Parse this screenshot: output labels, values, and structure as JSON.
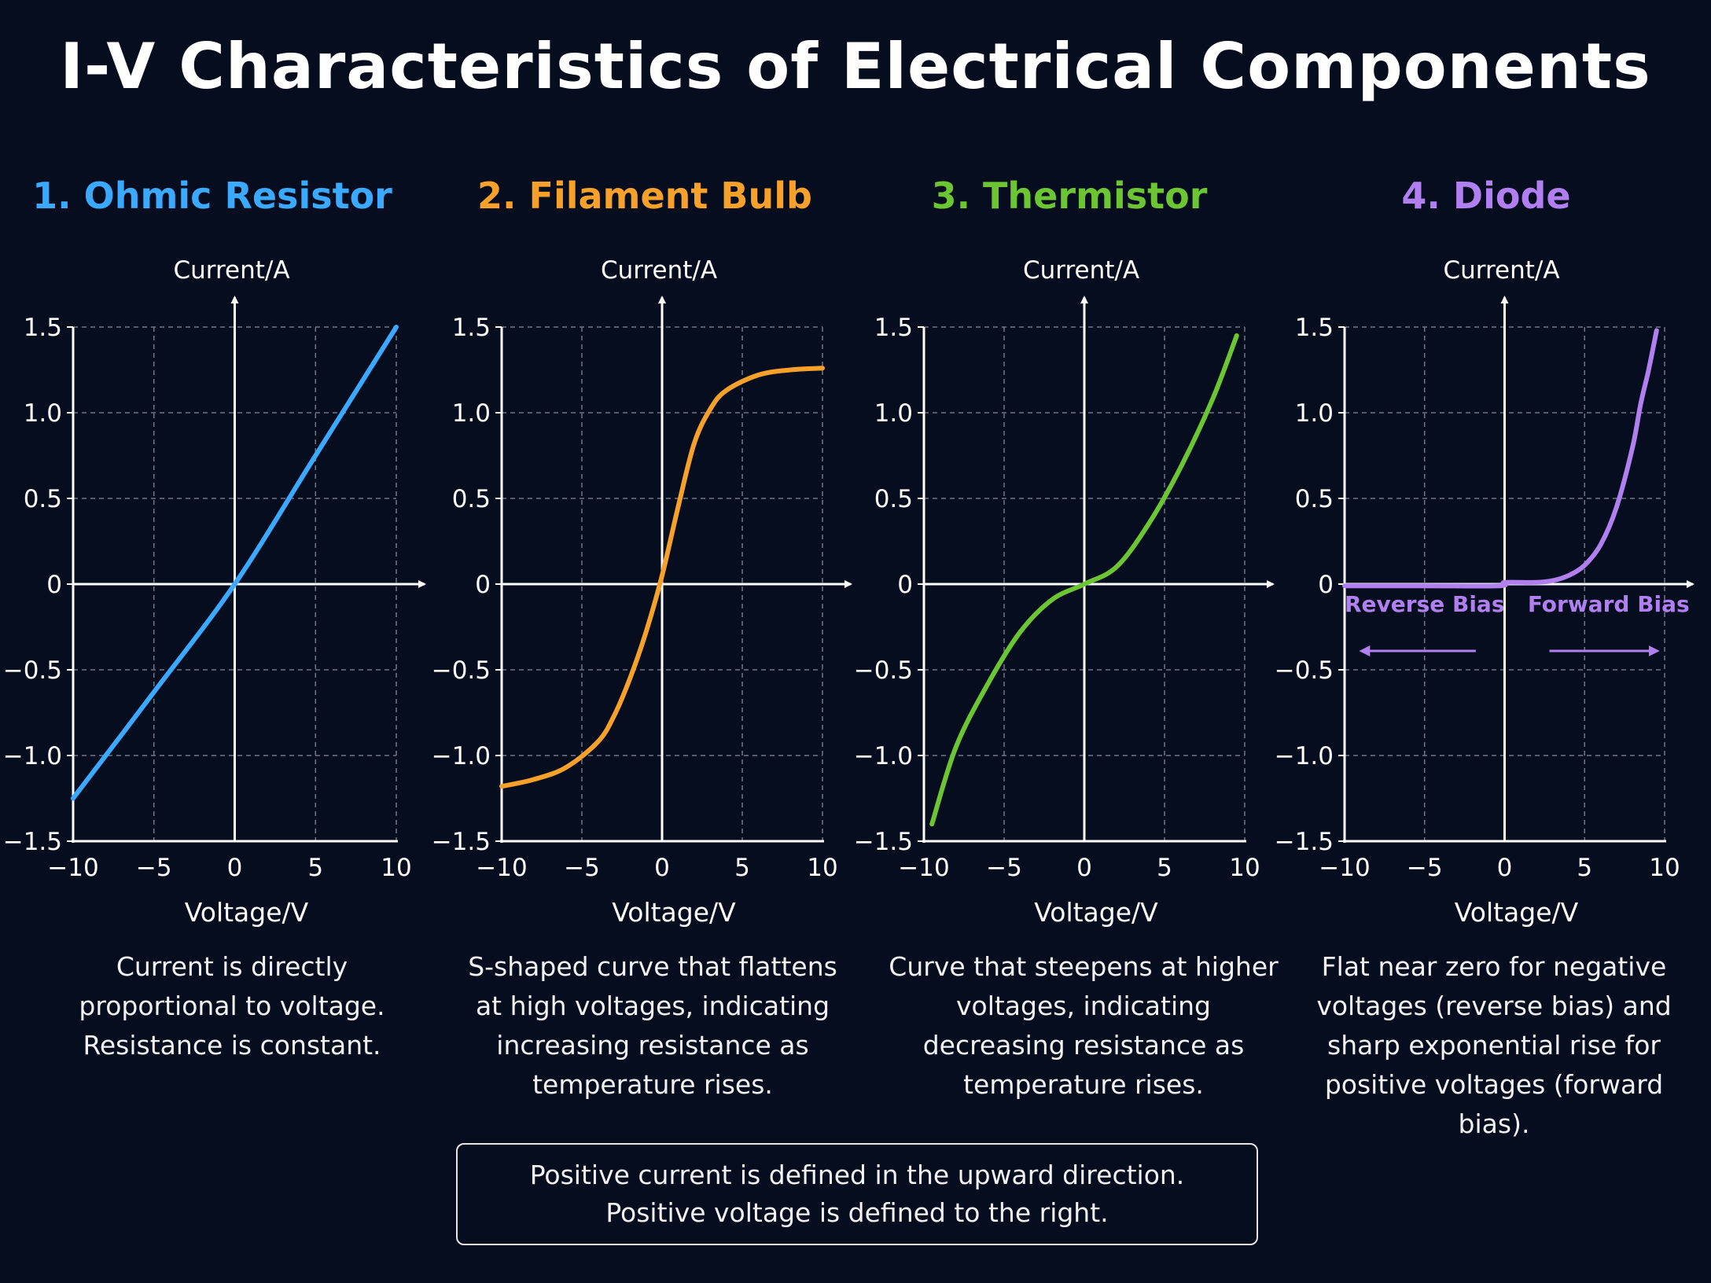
{
  "title": "I-V Characteristics of Electrical Components",
  "note": {
    "line1": "Positive current is defined in the upward direction.",
    "line2": "Positive voltage is defined to the right."
  },
  "chart_data": [
    {
      "type": "line",
      "title": "1. Ohmic Resistor",
      "color": "#3aa9ff",
      "xlabel": "Voltage/V",
      "ylabel": "Current/A",
      "xlim": [
        -10,
        10
      ],
      "ylim": [
        -1.5,
        1.5
      ],
      "xticks": [
        -10,
        -5,
        0,
        5,
        10
      ],
      "yticks": [
        -1.5,
        -1.0,
        -0.5,
        0,
        0.5,
        1.0,
        1.5
      ],
      "xtick_labels": [
        "−10",
        "−5",
        "0",
        "5",
        "10"
      ],
      "ytick_labels": [
        "−1.5",
        "−1.0",
        "−0.5",
        "0",
        "0.5",
        "1.0",
        "1.5"
      ],
      "grid": true,
      "description": "Current is directly proportional to voltage. Resistance is constant.",
      "x": [
        -10,
        -5,
        0,
        5,
        10
      ],
      "y": [
        -1.25,
        -0.63,
        0,
        0.75,
        1.5
      ]
    },
    {
      "type": "line",
      "title": "2. Filament Bulb",
      "color": "#f7a12b",
      "xlabel": "Voltage/V",
      "ylabel": "Current/A",
      "xlim": [
        -10,
        10
      ],
      "ylim": [
        -1.5,
        1.5
      ],
      "xticks": [
        -10,
        -5,
        0,
        5,
        10
      ],
      "yticks": [
        -1.5,
        -1.0,
        -0.5,
        0,
        0.5,
        1.0,
        1.5
      ],
      "xtick_labels": [
        "−10",
        "−5",
        "0",
        "5",
        "10"
      ],
      "ytick_labels": [
        "−1.5",
        "−1.0",
        "−0.5",
        "0",
        "0.5",
        "1.0",
        "1.5"
      ],
      "grid": true,
      "description": "S-shaped curve that flattens at high voltages, indicating increasing resistance as temperature rises.",
      "x": [
        -10,
        -8,
        -6,
        -4,
        -3,
        -2,
        -1,
        0,
        1,
        2,
        3,
        4,
        6,
        8,
        10
      ],
      "y": [
        -1.18,
        -1.14,
        -1.07,
        -0.92,
        -0.77,
        -0.55,
        -0.28,
        0.05,
        0.45,
        0.82,
        1.02,
        1.13,
        1.22,
        1.25,
        1.26
      ]
    },
    {
      "type": "line",
      "title": "3. Thermistor",
      "color": "#6cc532",
      "xlabel": "Voltage/V",
      "ylabel": "Current/A",
      "xlim": [
        -10,
        10
      ],
      "ylim": [
        -1.5,
        1.5
      ],
      "xticks": [
        -10,
        -5,
        0,
        5,
        10
      ],
      "yticks": [
        -1.5,
        -1.0,
        -0.5,
        0,
        0.5,
        1.0,
        1.5
      ],
      "xtick_labels": [
        "−10",
        "−5",
        "0",
        "5",
        "10"
      ],
      "ytick_labels": [
        "−1.5",
        "−1.0",
        "−0.5",
        "0",
        "0.5",
        "1.0",
        "1.5"
      ],
      "grid": true,
      "description": "Curve that steepens at higher voltages, indicating decreasing resistance as temperature rises.",
      "x": [
        -9.5,
        -8,
        -6,
        -4,
        -2,
        0,
        2,
        4,
        6,
        8,
        9.5
      ],
      "y": [
        -1.4,
        -0.95,
        -0.58,
        -0.28,
        -0.09,
        0,
        0.1,
        0.35,
        0.68,
        1.08,
        1.45
      ]
    },
    {
      "type": "line",
      "title": "4. Diode",
      "color": "#b27ff0",
      "xlabel": "Voltage/V",
      "ylabel": "Current/A",
      "xlim": [
        -10,
        10
      ],
      "ylim": [
        -1.5,
        1.5
      ],
      "xticks": [
        -10,
        -5,
        0,
        5,
        10
      ],
      "yticks": [
        -1.5,
        -1.0,
        -0.5,
        0,
        0.5,
        1.0,
        1.5
      ],
      "xtick_labels": [
        "−10",
        "−5",
        "0",
        "5",
        "10"
      ],
      "ytick_labels": [
        "−1.5",
        "−1.0",
        "−0.5",
        "0",
        "0.5",
        "1.0",
        "1.5"
      ],
      "grid": true,
      "description": "Flat near zero for negative voltages (reverse bias) and sharp exponential rise for positive voltages (forward bias).",
      "annotations": [
        "Reverse Bias",
        "Forward Bias"
      ],
      "x": [
        -10,
        -5,
        -0.3,
        0,
        2,
        3,
        4,
        5,
        6,
        7,
        8,
        8.5,
        9,
        9.5
      ],
      "y": [
        -0.01,
        -0.01,
        -0.01,
        0.01,
        0.01,
        0.02,
        0.05,
        0.11,
        0.23,
        0.45,
        0.8,
        1.05,
        1.25,
        1.48
      ]
    }
  ]
}
